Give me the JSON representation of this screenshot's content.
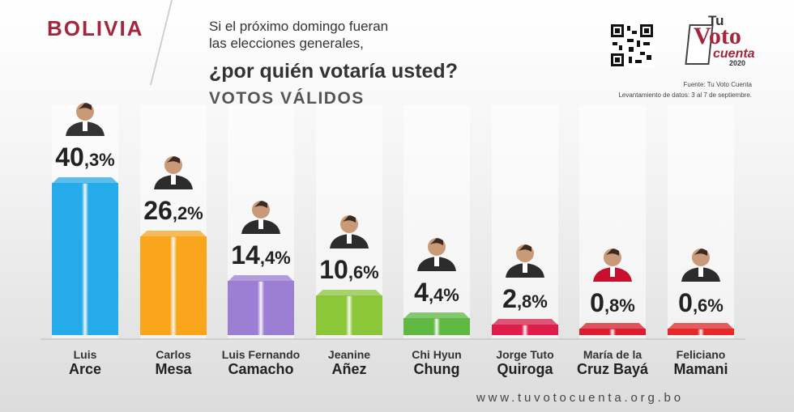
{
  "header": {
    "country": "BOLIVIA",
    "question_line1": "Si el próximo domingo fueran",
    "question_line2": "las elecciones generales,",
    "question_main": "¿por quién votaría usted?",
    "subtitle": "VOTOS VÁLIDOS"
  },
  "logo": {
    "tu": "Tu",
    "voto": "Voto",
    "cuenta": "cuenta",
    "year": "2020"
  },
  "source": {
    "line1": "Fuente: Tu Voto Cuenta",
    "line2": "Levantamiento de datos: 3 al 7 de septiembre."
  },
  "footer": {
    "url": "www.tuvotocuenta.org.bo"
  },
  "colors": {
    "brand": "#a3273c",
    "bars": [
      "#2aa9e6",
      "#f5a623",
      "#9b7fd1",
      "#8dc63f",
      "#62b846",
      "#d81e4a",
      "#d81e2e",
      "#e02a2a"
    ]
  },
  "chart_data": {
    "type": "bar",
    "categories": [
      "Luis Arce",
      "Carlos Mesa",
      "Luis Fernando Camacho",
      "Jeanine Añez",
      "Chi Hyun Chung",
      "Jorge Tuto Quiroga",
      "María de la Cruz Bayá",
      "Feliciano Mamani"
    ],
    "values": [
      40.3,
      26.2,
      14.4,
      10.6,
      4.4,
      2.8,
      0.8,
      0.6
    ],
    "unit": "%",
    "ylim": [
      0,
      40.3
    ]
  },
  "candidates": [
    {
      "first": "Luis",
      "last": "Arce",
      "pct_int": "40",
      "pct_dec": ",3%"
    },
    {
      "first": "Carlos",
      "last": "Mesa",
      "pct_int": "26",
      "pct_dec": ",2%"
    },
    {
      "first": "Luis Fernando",
      "last": "Camacho",
      "pct_int": "14",
      "pct_dec": ",4%"
    },
    {
      "first": "Jeanine",
      "last": "Añez",
      "pct_int": "10",
      "pct_dec": ",6%"
    },
    {
      "first": "Chi Hyun",
      "last": "Chung",
      "pct_int": "4",
      "pct_dec": ",4%"
    },
    {
      "first": "Jorge Tuto",
      "last": "Quiroga",
      "pct_int": "2",
      "pct_dec": ",8%"
    },
    {
      "first": "María de la",
      "last": "Cruz Bayá",
      "pct_int": "0",
      "pct_dec": ",8%"
    },
    {
      "first": "Feliciano",
      "last": "Mamani",
      "pct_int": "0",
      "pct_dec": ",6%"
    }
  ]
}
